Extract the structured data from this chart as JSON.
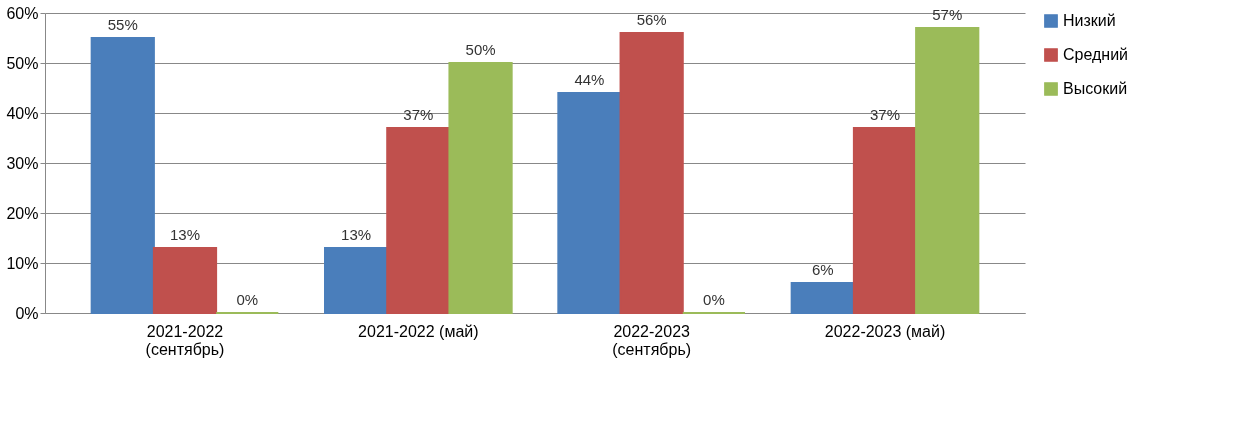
{
  "chart_data": {
    "type": "bar",
    "categories": [
      "2021-2022\n(сентябрь)",
      "2021-2022 (май)",
      "2022-2023\n(сентябрь)",
      "2022-2023 (май)"
    ],
    "series": [
      {
        "name": "Низкий",
        "color": "#4a7ebb",
        "values": [
          55,
          13,
          44,
          6
        ],
        "value_labels": [
          "55%",
          "13%",
          "44%",
          "6%"
        ]
      },
      {
        "name": "Средний",
        "color": "#c0504d",
        "values": [
          13,
          37,
          56,
          37
        ],
        "value_labels": [
          "13%",
          "37%",
          "56%",
          "37%"
        ]
      },
      {
        "name": "Высокий",
        "color": "#9bbb59",
        "values": [
          0,
          50,
          0,
          57
        ],
        "value_labels": [
          "0%",
          "50%",
          "0%",
          "57%"
        ]
      }
    ],
    "ylim": [
      0,
      60
    ],
    "yticks": [
      {
        "value": 0,
        "label": "0%"
      },
      {
        "value": 10,
        "label": "10%"
      },
      {
        "value": 20,
        "label": "20%"
      },
      {
        "value": 30,
        "label": "30%"
      },
      {
        "value": 40,
        "label": "40%"
      },
      {
        "value": 50,
        "label": "50%"
      },
      {
        "value": 60,
        "label": "60%"
      }
    ],
    "grid": "y",
    "legend": "right"
  }
}
